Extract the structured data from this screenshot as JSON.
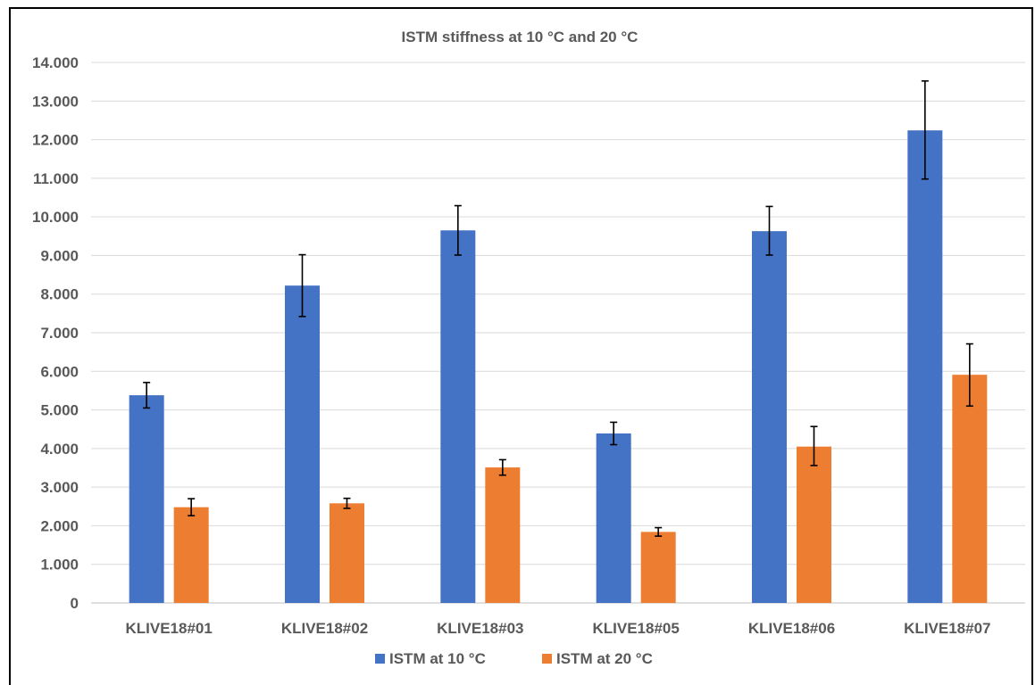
{
  "chart_data": {
    "type": "bar",
    "title": "ISTM stiffness at 10 °C and 20 °C",
    "xlabel": "",
    "ylabel": "",
    "categories": [
      "KLIVE18#01",
      "KLIVE18#02",
      "KLIVE18#03",
      "KLIVE18#05",
      "KLIVE18#06",
      "KLIVE18#07"
    ],
    "series": [
      {
        "name": "ISTM at 10 °C",
        "color": "#4472C4",
        "values": [
          5380,
          8220,
          9650,
          4390,
          9630,
          12240
        ],
        "error_low": [
          5050,
          7420,
          9010,
          4100,
          9010,
          10980
        ],
        "error_high": [
          5710,
          9020,
          10290,
          4680,
          10270,
          13520
        ]
      },
      {
        "name": "ISTM at 20 °C",
        "color": "#ED7D31",
        "values": [
          2480,
          2580,
          3510,
          1840,
          4050,
          5910
        ],
        "error_low": [
          2260,
          2450,
          3310,
          1730,
          3560,
          5100
        ],
        "error_high": [
          2700,
          2710,
          3710,
          1950,
          4570,
          6710
        ]
      }
    ],
    "ylim": [
      0,
      14000
    ],
    "yticks": [
      "0",
      "1.000",
      "2.000",
      "3.000",
      "4.000",
      "5.000",
      "6.000",
      "7.000",
      "8.000",
      "9.000",
      "10.000",
      "11.000",
      "12.000",
      "13.000",
      "14.000"
    ],
    "grid": true,
    "legend": "bottom",
    "gridline_color": "#D9D9D9",
    "text_color": "#595959"
  }
}
